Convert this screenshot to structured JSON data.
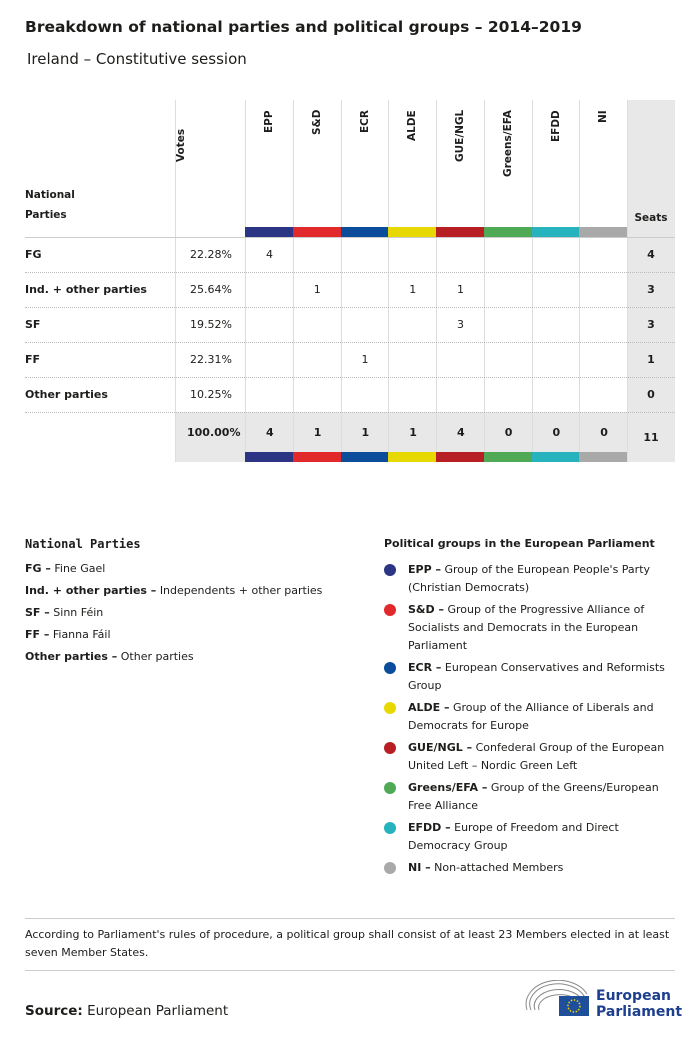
{
  "header": {
    "title": "Breakdown of national parties and political groups – 2014–2019",
    "subtitle": "Ireland – Constitutive session"
  },
  "table": {
    "party_header": "National Parties",
    "votes_header": "Votes",
    "seats_header": "Seats",
    "groups": [
      {
        "name": "EPP",
        "color": "#2b3583"
      },
      {
        "name": "S&D",
        "color": "#e1292b"
      },
      {
        "name": "ECR",
        "color": "#0b4c9b"
      },
      {
        "name": "ALDE",
        "color": "#e6d800"
      },
      {
        "name": "GUE/NGL",
        "color": "#b71f24"
      },
      {
        "name": "Greens/EFA",
        "color": "#50a955"
      },
      {
        "name": "EFDD",
        "color": "#27b3be"
      },
      {
        "name": "NI",
        "color": "#a9a9a9"
      }
    ],
    "rows": [
      {
        "party": "FG",
        "votes": "22.28%",
        "cells": [
          4,
          null,
          null,
          null,
          null,
          null,
          null,
          null
        ],
        "seats": 4
      },
      {
        "party": "Ind. + other parties",
        "votes": "25.64%",
        "cells": [
          null,
          1,
          null,
          1,
          1,
          null,
          null,
          null
        ],
        "seats": 3
      },
      {
        "party": "SF",
        "votes": "19.52%",
        "cells": [
          null,
          null,
          null,
          null,
          3,
          null,
          null,
          null
        ],
        "seats": 3
      },
      {
        "party": "FF",
        "votes": "22.31%",
        "cells": [
          null,
          null,
          1,
          null,
          null,
          null,
          null,
          null
        ],
        "seats": 1
      },
      {
        "party": "Other parties",
        "votes": "10.25%",
        "cells": [
          null,
          null,
          null,
          null,
          null,
          null,
          null,
          null
        ],
        "seats": 0
      }
    ],
    "totals": {
      "votes": "100.00%",
      "cells": [
        4,
        1,
        1,
        1,
        4,
        0,
        0,
        0
      ],
      "seats": 11
    }
  },
  "national_legend": {
    "title": "National Parties",
    "items": [
      {
        "key": "FG –",
        "text": "Fine Gael"
      },
      {
        "key": "Ind. + other parties –",
        "text": "Independents + other parties"
      },
      {
        "key": "SF –",
        "text": "Sinn Féin"
      },
      {
        "key": "FF –",
        "text": "Fianna Fáil"
      },
      {
        "key": "Other parties –",
        "text": "Other parties"
      }
    ]
  },
  "group_legend": {
    "title": "Political groups in the European Parliament",
    "items": [
      {
        "key": "EPP –",
        "text": "Group of the European People's Party (Christian Democrats)"
      },
      {
        "key": "S&D –",
        "text": "Group of the Progressive Alliance of Socialists and Democrats in the European Parliament"
      },
      {
        "key": "ECR –",
        "text": "European Conservatives and Reformists Group"
      },
      {
        "key": "ALDE –",
        "text": "Group of the Alliance of Liberals and Democrats for Europe"
      },
      {
        "key": "GUE/NGL –",
        "text": "Confederal Group of the European United Left – Nordic Green Left"
      },
      {
        "key": "Greens/EFA –",
        "text": "Group of the Greens/European Free Alliance"
      },
      {
        "key": "EFDD –",
        "text": "Europe of Freedom and Direct Democracy Group"
      },
      {
        "key": "NI –",
        "text": "Non-attached Members"
      }
    ]
  },
  "footnote": "According to Parliament's rules of procedure, a political group shall consist of at least 23 Members elected in at least seven Member States.",
  "source": {
    "label": "Source:",
    "text": "European Parliament"
  },
  "logo": {
    "line1": "European",
    "line2": "Parliament"
  }
}
